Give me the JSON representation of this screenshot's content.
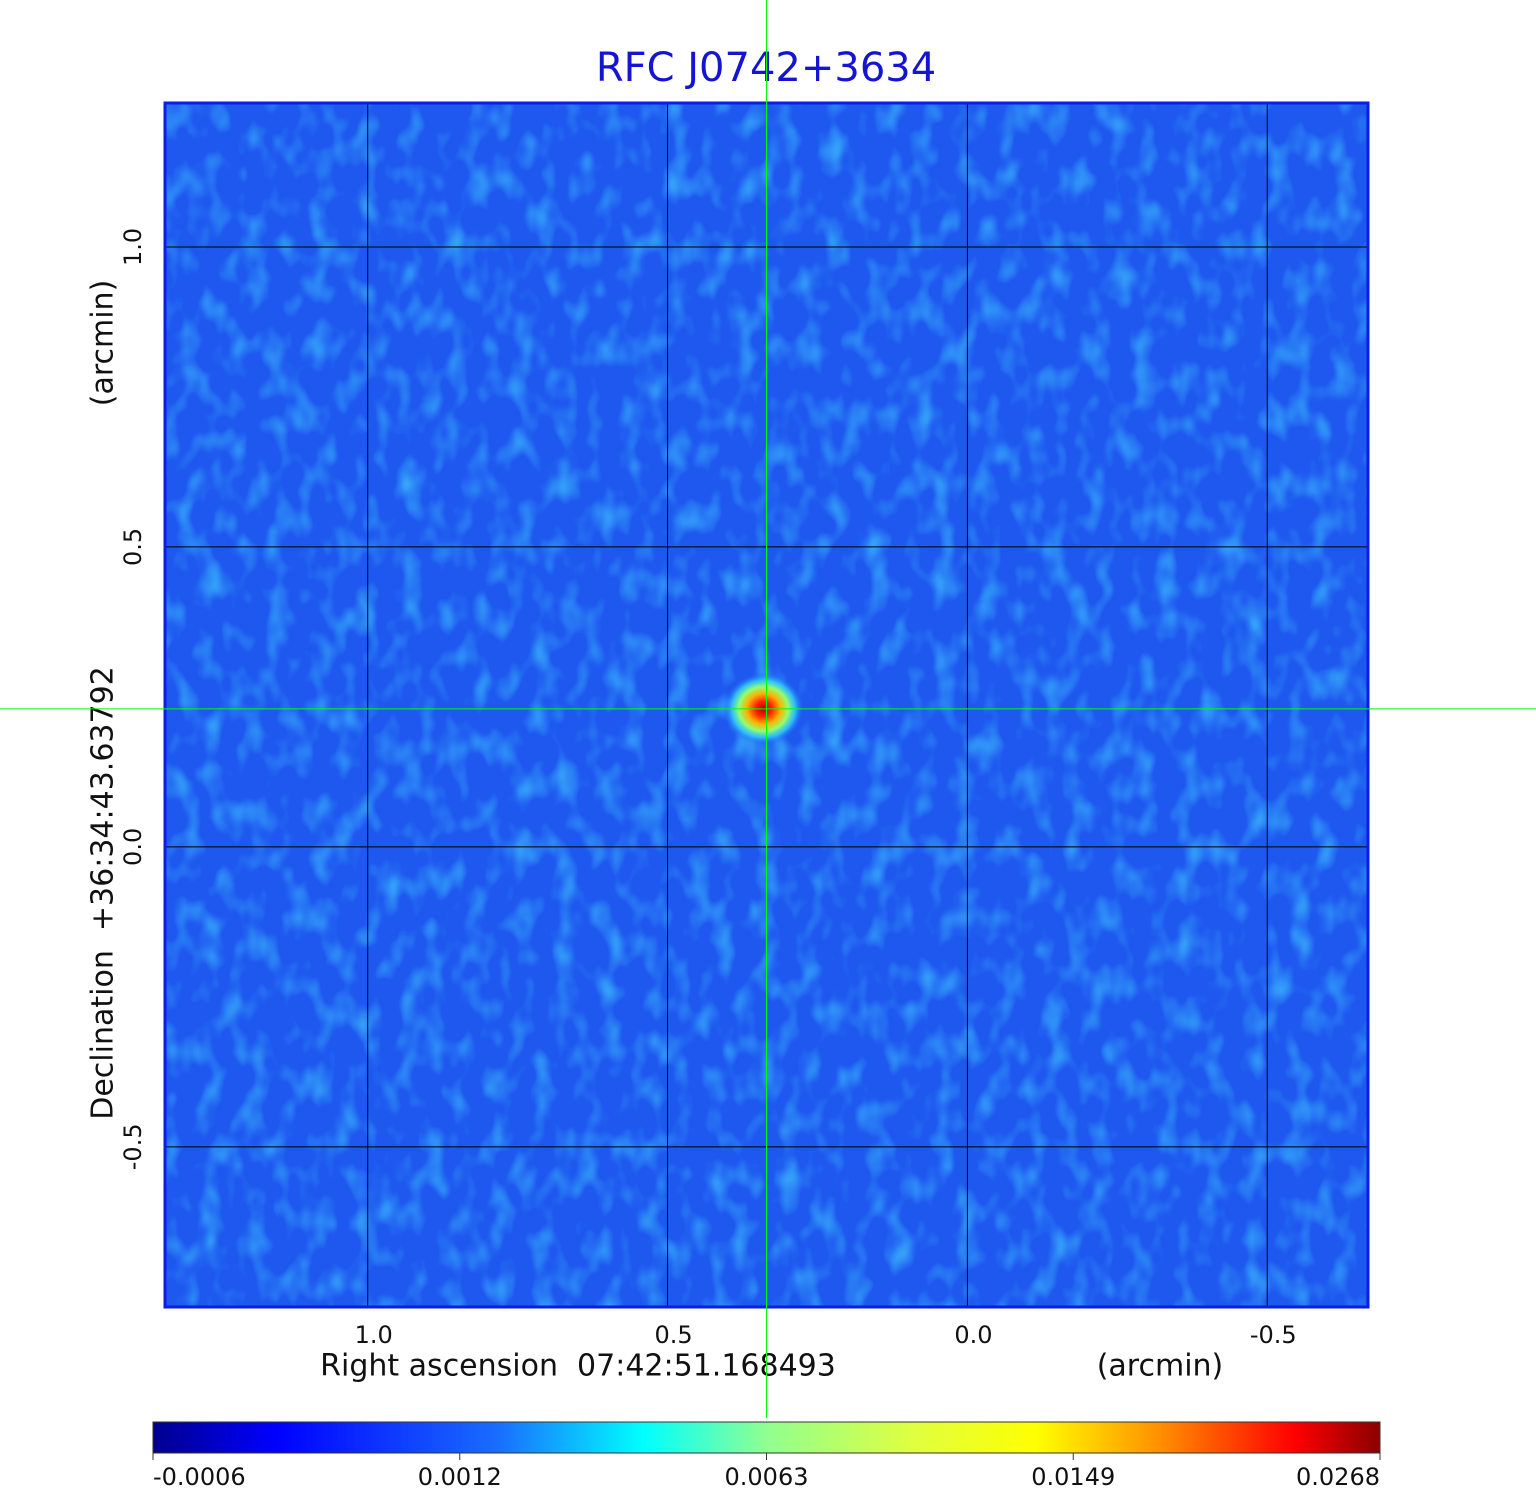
{
  "chart_data": {
    "type": "image",
    "title": "RFC J0742+3634",
    "x_label": "Right ascension  07:42:51.168493",
    "x_unit": "(arcmin)",
    "y_label": "Declination  +36:34:43.63792",
    "y_unit": "(arcmin)",
    "xlim": [
      1.338,
      -0.668
    ],
    "ylim": [
      -0.767,
      1.24
    ],
    "xticks": [
      {
        "value": 1,
        "label": "1.0"
      },
      0.5,
      {
        "value": 0,
        "label": "0.0"
      },
      -0.5
    ],
    "yticks": [
      {
        "value": 1,
        "label": "1.0"
      },
      0.5,
      {
        "value": 0,
        "label": "0.0"
      },
      -0.5
    ],
    "grid": true,
    "crosshair": {
      "x": 0.335,
      "y": 0.23,
      "color": "#00ff00"
    },
    "colorbar_ticks": [
      -0.0006,
      0.0012,
      0.0063,
      0.0149,
      0.0268
    ]
  }
}
